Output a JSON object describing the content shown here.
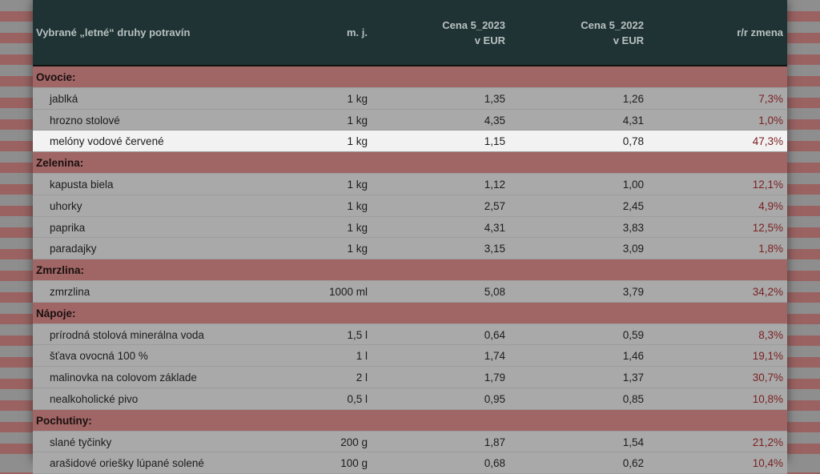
{
  "header": {
    "name": "Vybrané „letné“ druhy potravín",
    "unit": "m. j.",
    "price2023_l1": "Cena 5_2023",
    "price2023_l2": "v EUR",
    "price2022_l1": "Cena 5_2022",
    "price2022_l2": "v EUR",
    "change": "r/r zmena"
  },
  "rows": [
    {
      "type": "cat",
      "name": "Ovocie:"
    },
    {
      "type": "item",
      "name": "jablká",
      "unit": "1 kg",
      "p23": "1,35",
      "p22": "1,26",
      "chg": "7,3%"
    },
    {
      "type": "item",
      "name": "hrozno stolové",
      "unit": "1 kg",
      "p23": "4,35",
      "p22": "4,31",
      "chg": "1,0%"
    },
    {
      "type": "hl",
      "name": "melóny vodové červené",
      "unit": "1 kg",
      "p23": "1,15",
      "p22": "0,78",
      "chg": "47,3%"
    },
    {
      "type": "cat",
      "name": "Zelenina:"
    },
    {
      "type": "item",
      "name": "kapusta biela",
      "unit": "1 kg",
      "p23": "1,12",
      "p22": "1,00",
      "chg": "12,1%"
    },
    {
      "type": "item",
      "name": "uhorky",
      "unit": "1 kg",
      "p23": "2,57",
      "p22": "2,45",
      "chg": "4,9%"
    },
    {
      "type": "item",
      "name": "paprika",
      "unit": "1 kg",
      "p23": "4,31",
      "p22": "3,83",
      "chg": "12,5%"
    },
    {
      "type": "item",
      "name": "paradajky",
      "unit": "1 kg",
      "p23": "3,15",
      "p22": "3,09",
      "chg": "1,8%"
    },
    {
      "type": "cat",
      "name": "Zmrzlina:"
    },
    {
      "type": "item",
      "name": "zmrzlina",
      "unit": "1000 ml",
      "p23": "5,08",
      "p22": "3,79",
      "chg": "34,2%"
    },
    {
      "type": "cat",
      "name": "Nápoje:"
    },
    {
      "type": "item",
      "name": "prírodná stolová minerálna voda",
      "unit": "1,5 l",
      "p23": "0,64",
      "p22": "0,59",
      "chg": "8,3%"
    },
    {
      "type": "item",
      "name": "šťava ovocná 100 %",
      "unit": "1 l",
      "p23": "1,74",
      "p22": "1,46",
      "chg": "19,1%"
    },
    {
      "type": "item",
      "name": "malinovka na colovom základe",
      "unit": "2 l",
      "p23": "1,79",
      "p22": "1,37",
      "chg": "30,7%"
    },
    {
      "type": "item",
      "name": "nealkoholické pivo",
      "unit": "0,5 l",
      "p23": "0,95",
      "p22": "0,85",
      "chg": "10,8%"
    },
    {
      "type": "cat",
      "name": "Pochutiny:"
    },
    {
      "type": "item",
      "name": "slané tyčinky",
      "unit": "200 g",
      "p23": "1,87",
      "p22": "1,54",
      "chg": "21,2%"
    },
    {
      "type": "item",
      "name": "arašidové oriešky lúpané solené",
      "unit": "100 g",
      "p23": "0,68",
      "p22": "0,62",
      "chg": "10,4%"
    }
  ]
}
